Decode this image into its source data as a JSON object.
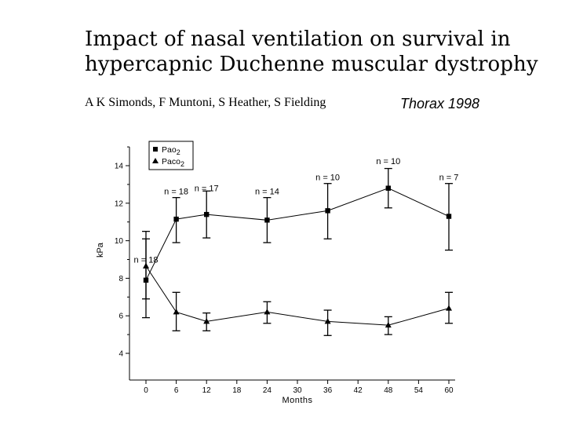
{
  "header": {
    "title_line1": "Impact of nasal ventilation on survival in",
    "title_line2": "hypercapnic Duchenne muscular dystrophy",
    "authors": "A K Simonds, F Muntoni, S Heather, S Fielding",
    "journal": "Thorax 1998"
  },
  "chart_data": {
    "type": "line",
    "xlabel": "Months",
    "ylabel": "kPa",
    "xlim": [
      0,
      60
    ],
    "ylim": [
      4,
      15
    ],
    "xticks": [
      0,
      6,
      12,
      18,
      24,
      30,
      36,
      42,
      48,
      54,
      60
    ],
    "yticks": [
      4,
      6,
      8,
      10,
      12,
      14
    ],
    "grid": false,
    "legend": "top-left",
    "series": [
      {
        "name": "Pao2",
        "name_base": "Pao",
        "name_sub": "2",
        "marker": "square",
        "color": "#000000",
        "x": [
          0,
          6,
          12,
          24,
          36,
          48,
          60
        ],
        "y": [
          7.9,
          11.15,
          11.4,
          11.1,
          11.6,
          12.8,
          11.3
        ],
        "err_low": [
          6.9,
          9.9,
          10.15,
          9.9,
          10.1,
          11.75,
          9.5
        ],
        "err_high": [
          10.5,
          12.3,
          12.65,
          12.3,
          13.05,
          13.85,
          13.05
        ]
      },
      {
        "name": "Paco2",
        "name_base": "Paco",
        "name_sub": "2",
        "marker": "triangle",
        "color": "#000000",
        "x": [
          0,
          6,
          12,
          24,
          36,
          48,
          60
        ],
        "y": [
          8.65,
          6.2,
          5.7,
          6.2,
          5.7,
          5.5,
          6.4
        ],
        "err_low": [
          5.9,
          5.2,
          5.2,
          5.6,
          4.95,
          5.0,
          5.6
        ],
        "err_high": [
          10.1,
          7.25,
          6.15,
          6.75,
          6.3,
          5.95,
          7.25
        ]
      }
    ],
    "annotations": [
      {
        "text": "n = 18",
        "x": 0,
        "y": 9.0
      },
      {
        "text": "n = 18",
        "x": 6,
        "y": 12.65
      },
      {
        "text": "n = 17",
        "x": 12,
        "y": 12.8
      },
      {
        "text": "n = 14",
        "x": 24,
        "y": 12.65
      },
      {
        "text": "n = 10",
        "x": 36,
        "y": 13.4
      },
      {
        "text": "n = 10",
        "x": 48,
        "y": 14.25
      },
      {
        "text": "n = 7",
        "x": 60,
        "y": 13.4
      }
    ]
  }
}
